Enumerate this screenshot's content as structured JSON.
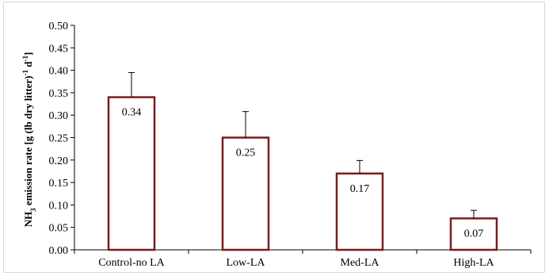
{
  "chart_data": {
    "type": "bar",
    "title": "",
    "xlabel": "",
    "ylabel": {
      "prefix": "NH",
      "sub": "3",
      "middle": " emission rate [g (lb dry litter)",
      "sup1": "-1",
      "d": " d",
      "sup2": "-1",
      "end": "]"
    },
    "categories": [
      "Control-no LA",
      "Low-LA",
      "Med-LA",
      "High-LA"
    ],
    "values": [
      0.34,
      0.25,
      0.17,
      0.07
    ],
    "error_upper": [
      0.395,
      0.308,
      0.199,
      0.088
    ],
    "data_labels": [
      "0.34",
      "0.25",
      "0.17",
      "0.07"
    ],
    "ylim": [
      0,
      0.5
    ],
    "ytick_labels": [
      "0.00",
      "0.05",
      "0.10",
      "0.15",
      "0.20",
      "0.25",
      "0.30",
      "0.35",
      "0.40",
      "0.45",
      "0.50"
    ],
    "grid": false,
    "legend": "none",
    "bar_edge_color": "#7b1c1c",
    "bar_fill_color": "#ffffff"
  }
}
